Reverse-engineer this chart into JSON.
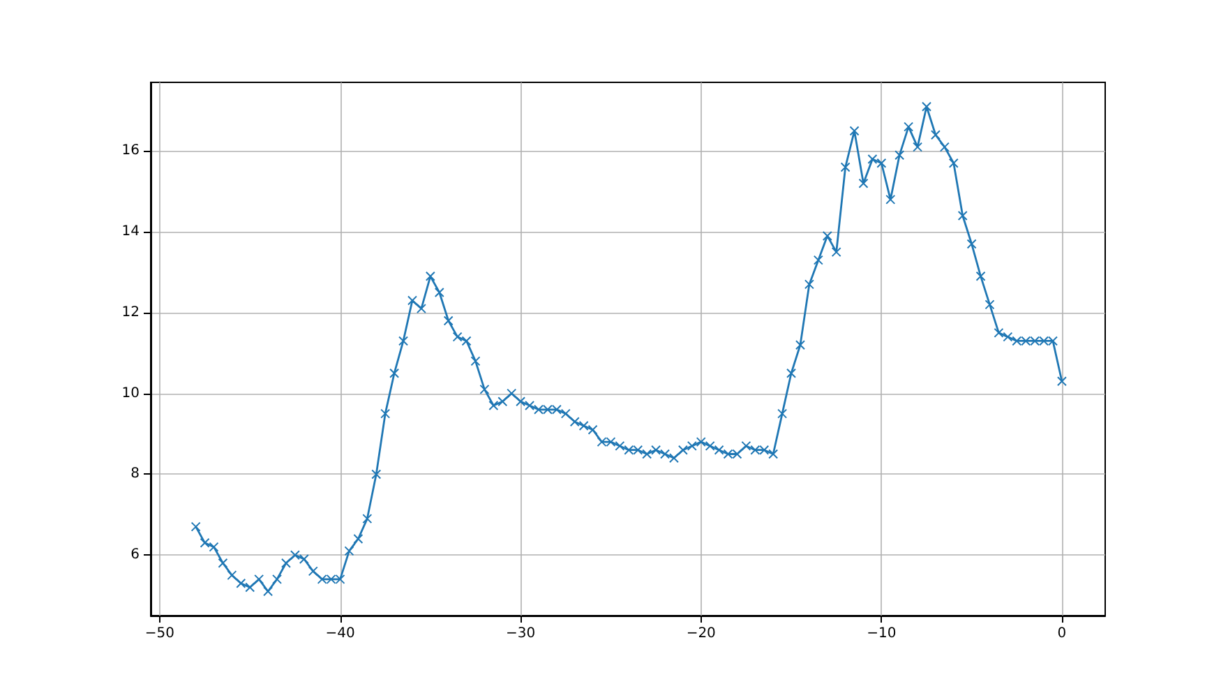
{
  "chart_data": {
    "type": "line",
    "x": [
      -48,
      -47.5,
      -47,
      -46.5,
      -46,
      -45.5,
      -45,
      -44.5,
      -44,
      -43.5,
      -43,
      -42.5,
      -42,
      -41.5,
      -41,
      -40.5,
      -40,
      -39.5,
      -39,
      -38.5,
      -38,
      -37.5,
      -37,
      -36.5,
      -36,
      -35.5,
      -35,
      -34.5,
      -34,
      -33.5,
      -33,
      -32.5,
      -32,
      -31.5,
      -31,
      -30.5,
      -30,
      -29.5,
      -29,
      -28.5,
      -28,
      -27.5,
      -27,
      -26.5,
      -26,
      -25.5,
      -25,
      -24.5,
      -24,
      -23.5,
      -23,
      -22.5,
      -22,
      -21.5,
      -21,
      -20.5,
      -20,
      -19.5,
      -19,
      -18.5,
      -18,
      -17.5,
      -17,
      -16.5,
      -16,
      -15.5,
      -15,
      -14.5,
      -14,
      -13.5,
      -13,
      -12.5,
      -12,
      -11.5,
      -11,
      -10.5,
      -10,
      -9.5,
      -9,
      -8.5,
      -8,
      -7.5,
      -7,
      -6.5,
      -6,
      -5.5,
      -5,
      -4.5,
      -4,
      -3.5,
      -3,
      -2.5,
      -2,
      -1.5,
      -1,
      -0.5,
      0
    ],
    "series": [
      {
        "color": "#1f77b4",
        "values": [
          6.7,
          6.3,
          6.2,
          5.8,
          5.5,
          5.3,
          5.2,
          5.4,
          5.1,
          5.4,
          5.8,
          6.0,
          5.9,
          5.6,
          5.4,
          5.4,
          5.4,
          6.1,
          6.4,
          6.9,
          8.0,
          9.5,
          10.5,
          11.3,
          12.3,
          12.1,
          12.9,
          12.5,
          11.8,
          11.4,
          11.3,
          10.8,
          10.1,
          9.7,
          9.8,
          10.0,
          9.8,
          9.7,
          9.6,
          9.6,
          9.6,
          9.5,
          9.3,
          9.2,
          9.1,
          8.8,
          8.8,
          8.7,
          8.6,
          8.6,
          8.5,
          8.6,
          8.5,
          8.4,
          8.6,
          8.7,
          8.8,
          8.7,
          8.6,
          8.5,
          8.5,
          8.7,
          8.6,
          8.6,
          8.5,
          9.5,
          10.5,
          11.2,
          12.7,
          13.3,
          13.9,
          13.5,
          15.6,
          16.5,
          15.2,
          15.8,
          15.7,
          14.8,
          15.9,
          16.6,
          16.1,
          17.1,
          16.4,
          16.1,
          15.7,
          14.4,
          13.7,
          12.9,
          12.2,
          11.5,
          11.4,
          11.3,
          11.3,
          11.3,
          11.3,
          11.3,
          10.3
        ]
      }
    ],
    "xlim": [
      -50.5,
      2.4
    ],
    "xticks": [
      -50,
      -40,
      -30,
      -20,
      -10,
      0
    ],
    "ylim": [
      4.5,
      17.7
    ],
    "yticks": [
      6,
      8,
      10,
      12,
      14,
      16
    ],
    "grid": true,
    "marker": "cross",
    "line_style": "solid"
  }
}
